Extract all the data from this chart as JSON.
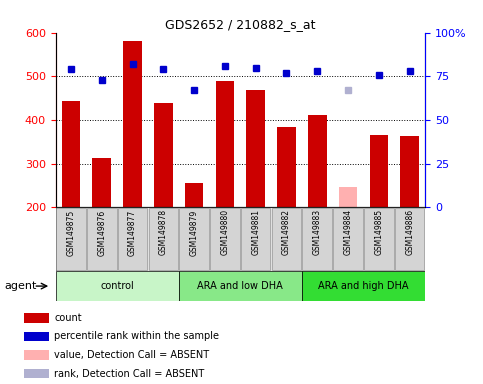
{
  "title": "GDS2652 / 210882_s_at",
  "samples": [
    "GSM149875",
    "GSM149876",
    "GSM149877",
    "GSM149878",
    "GSM149879",
    "GSM149880",
    "GSM149881",
    "GSM149882",
    "GSM149883",
    "GSM149884",
    "GSM149885",
    "GSM149886"
  ],
  "counts": [
    443,
    313,
    580,
    440,
    256,
    490,
    468,
    385,
    412,
    null,
    366,
    363
  ],
  "absent_value": [
    null,
    null,
    null,
    null,
    null,
    null,
    null,
    null,
    null,
    247,
    null,
    null
  ],
  "percentile_ranks": [
    79,
    73,
    82,
    79,
    67,
    81,
    80,
    77,
    78,
    null,
    76,
    78
  ],
  "absent_rank": [
    null,
    null,
    null,
    null,
    null,
    null,
    null,
    null,
    null,
    67,
    null,
    null
  ],
  "bar_color": "#cc0000",
  "bar_absent_color": "#ffb0b0",
  "dot_color": "#0000cc",
  "dot_absent_color": "#b0b0d0",
  "ylim_left": [
    200,
    600
  ],
  "ylim_right": [
    0,
    100
  ],
  "yticks_left": [
    200,
    300,
    400,
    500,
    600
  ],
  "yticks_right": [
    0,
    25,
    50,
    75,
    100
  ],
  "groups": [
    {
      "label": "control",
      "indices": [
        0,
        1,
        2,
        3
      ],
      "color": "#c8f5c8"
    },
    {
      "label": "ARA and low DHA",
      "indices": [
        4,
        5,
        6,
        7
      ],
      "color": "#88e888"
    },
    {
      "label": "ARA and high DHA",
      "indices": [
        8,
        9,
        10,
        11
      ],
      "color": "#33dd33"
    }
  ],
  "agent_label": "agent",
  "legend_items": [
    {
      "color": "#cc0000",
      "label": "count"
    },
    {
      "color": "#0000cc",
      "label": "percentile rank within the sample"
    },
    {
      "color": "#ffb0b0",
      "label": "value, Detection Call = ABSENT"
    },
    {
      "color": "#b0b0d0",
      "label": "rank, Detection Call = ABSENT"
    }
  ],
  "background_color": "#ffffff"
}
